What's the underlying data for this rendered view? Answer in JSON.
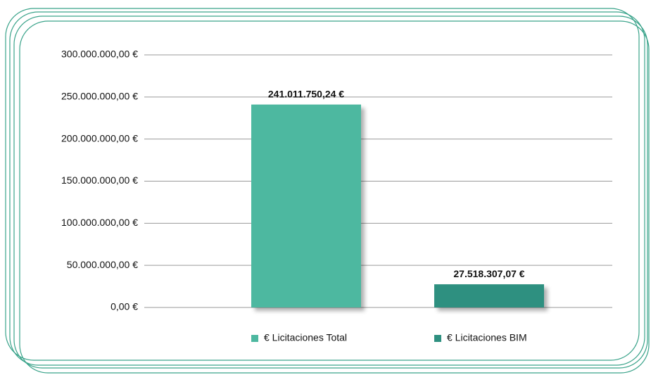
{
  "chart_data": {
    "type": "bar",
    "series": [
      {
        "name": "€ Licitaciones Total",
        "color": "#4db8a0",
        "values": [
          241011750.24
        ],
        "value_labels": [
          "241.011.750,24 €"
        ]
      },
      {
        "name": "€ Licitaciones BIM",
        "color": "#2e9080",
        "values": [
          27518307.07
        ],
        "value_labels": [
          "27.518.307,07 €"
        ]
      }
    ],
    "ylim": [
      0,
      300000000
    ],
    "yticks": [
      {
        "value": 0,
        "label": "0,00 €"
      },
      {
        "value": 50000000,
        "label": "50.000.000,00 €"
      },
      {
        "value": 100000000,
        "label": "100.000.000,00 €"
      },
      {
        "value": 150000000,
        "label": "150.000.000,00 €"
      },
      {
        "value": 200000000,
        "label": "200.000.000,00 €"
      },
      {
        "value": 250000000,
        "label": "250.000.000,00 €"
      },
      {
        "value": 300000000,
        "label": "300.000.000,00 €"
      }
    ],
    "grid": true,
    "legend": "bottom"
  }
}
